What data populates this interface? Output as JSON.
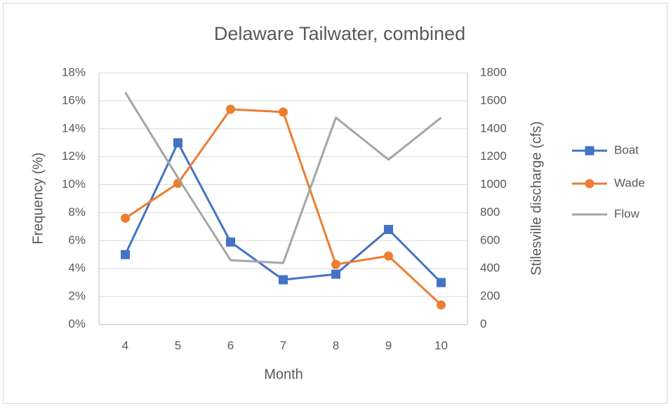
{
  "chart_data": {
    "type": "line",
    "title": "Delaware Tailwater, combined",
    "x_label": "Month",
    "y_label": "Frequency (%)",
    "y2_label": "Stilesville discharge (cfs)",
    "categories": [
      4,
      5,
      6,
      7,
      8,
      9,
      10
    ],
    "series": [
      {
        "name": "Boat",
        "color": "#4472c4",
        "marker": "square",
        "values": [
          5.0,
          13.0,
          5.9,
          3.2,
          3.6,
          6.8,
          3.0
        ]
      },
      {
        "name": "Wade",
        "color": "#ed7d31",
        "marker": "circle",
        "values": [
          7.6,
          10.1,
          15.4,
          15.2,
          4.3,
          4.9,
          1.4
        ]
      },
      {
        "name": "Flow",
        "color": "#a5a5a5",
        "axis": "y2",
        "values": [
          1660,
          1050,
          460,
          440,
          1480,
          1180,
          1480
        ]
      }
    ],
    "ylim": [
      0,
      18
    ],
    "yticks": [
      {
        "value": 0,
        "label": "0%"
      },
      {
        "value": 2,
        "label": "2%"
      },
      {
        "value": 4,
        "label": "4%"
      },
      {
        "value": 6,
        "label": "6%"
      },
      {
        "value": 8,
        "label": "8%"
      },
      {
        "value": 10,
        "label": "10%"
      },
      {
        "value": 12,
        "label": "12%"
      },
      {
        "value": 14,
        "label": "14%"
      },
      {
        "value": 16,
        "label": "16%"
      },
      {
        "value": 18,
        "label": "18%"
      }
    ],
    "y2lim": [
      0,
      1800
    ],
    "y2ticks": [
      0,
      200,
      400,
      600,
      800,
      1000,
      1200,
      1400,
      1600,
      1800
    ],
    "grid": true,
    "legend": "right"
  }
}
